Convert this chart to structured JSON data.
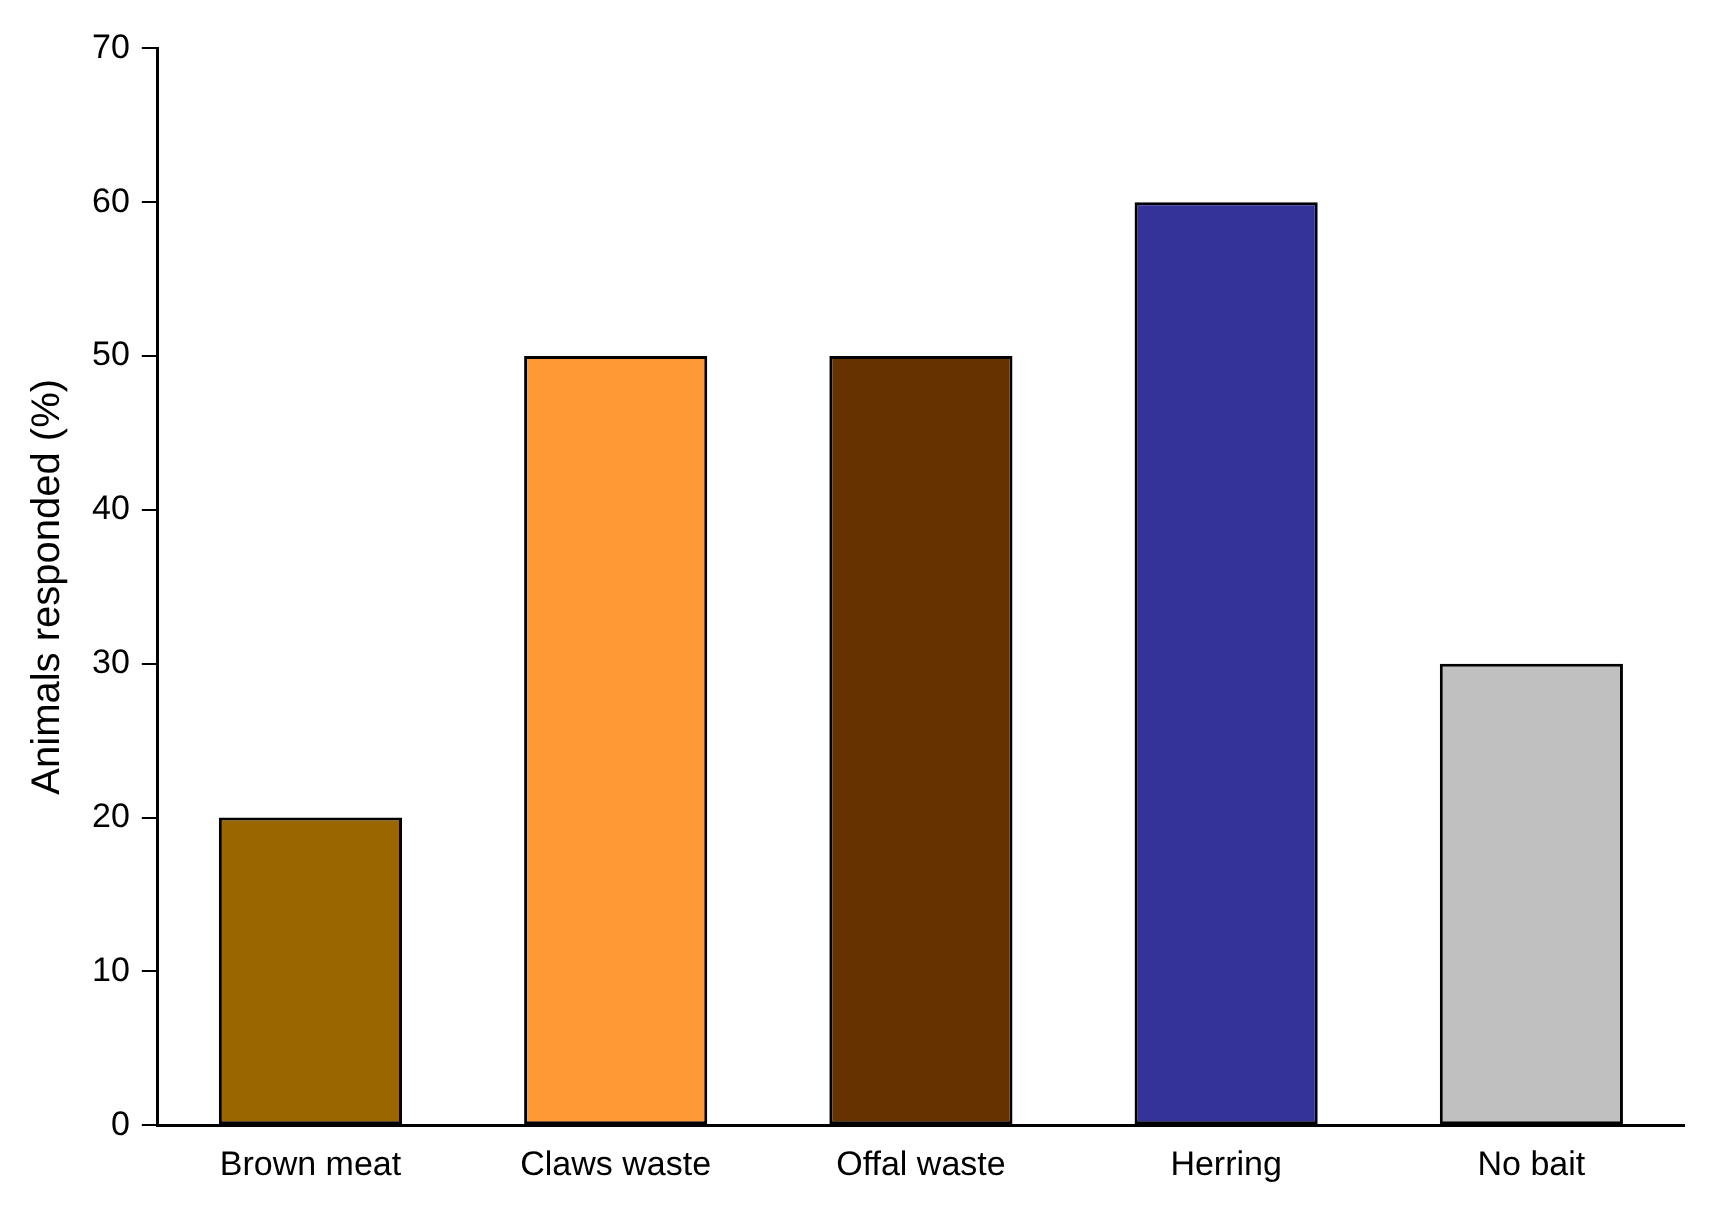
{
  "chart_data": {
    "type": "bar",
    "ylabel": "Animals responded (%)",
    "categories": [
      "Brown meat",
      "Claws waste",
      "Offal waste",
      "Herring",
      "No bait"
    ],
    "values": [
      20,
      50,
      50,
      60,
      30
    ],
    "colors": [
      "#996600",
      "#ff9933",
      "#663300",
      "#333399",
      "#c0c0c0"
    ],
    "ylim": [
      0,
      70
    ],
    "yticks": [
      0,
      10,
      20,
      30,
      40,
      50,
      60,
      70
    ],
    "grid": false,
    "legend": false
  }
}
